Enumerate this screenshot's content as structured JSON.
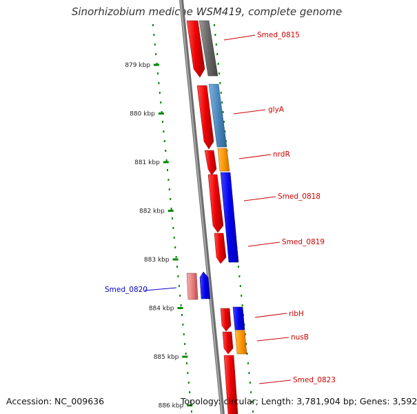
{
  "title": "Sinorhizobium medicae WSM419, complete genome",
  "accession": "Accession: NC_009636",
  "topology": "Topology: circular; Length: 3,781,904 bp; Genes: 3,592",
  "ticks": [
    {
      "label": "879 kbp"
    },
    {
      "label": "880 kbp"
    },
    {
      "label": "881 kbp"
    },
    {
      "label": "882 kbp"
    },
    {
      "label": "883 kbp"
    },
    {
      "label": "884 kbp"
    },
    {
      "label": "885 kbp"
    },
    {
      "label": "886 kbp"
    }
  ],
  "gene_labels": [
    {
      "name": "Smed_0815",
      "color": "#cc0000"
    },
    {
      "name": "glyA",
      "color": "#cc0000"
    },
    {
      "name": "nrdR",
      "color": "#cc0000"
    },
    {
      "name": "Smed_0818",
      "color": "#cc0000"
    },
    {
      "name": "Smed_0819",
      "color": "#cc0000"
    },
    {
      "name": "Smed_0820",
      "color": "#0000cc"
    },
    {
      "name": "ribH",
      "color": "#cc0000"
    },
    {
      "name": "nusB",
      "color": "#cc0000"
    },
    {
      "name": "Smed_0823",
      "color": "#cc0000"
    }
  ],
  "colors": {
    "strand_red": "#ee0000",
    "strand_pink": "#e88080",
    "gray_feature": "#666666",
    "steelblue_feature": "#4a88c0",
    "orange_feature": "#ff9900",
    "blue_feature": "#0000ee",
    "backbone": "#888888",
    "tick_green": "#008800"
  }
}
